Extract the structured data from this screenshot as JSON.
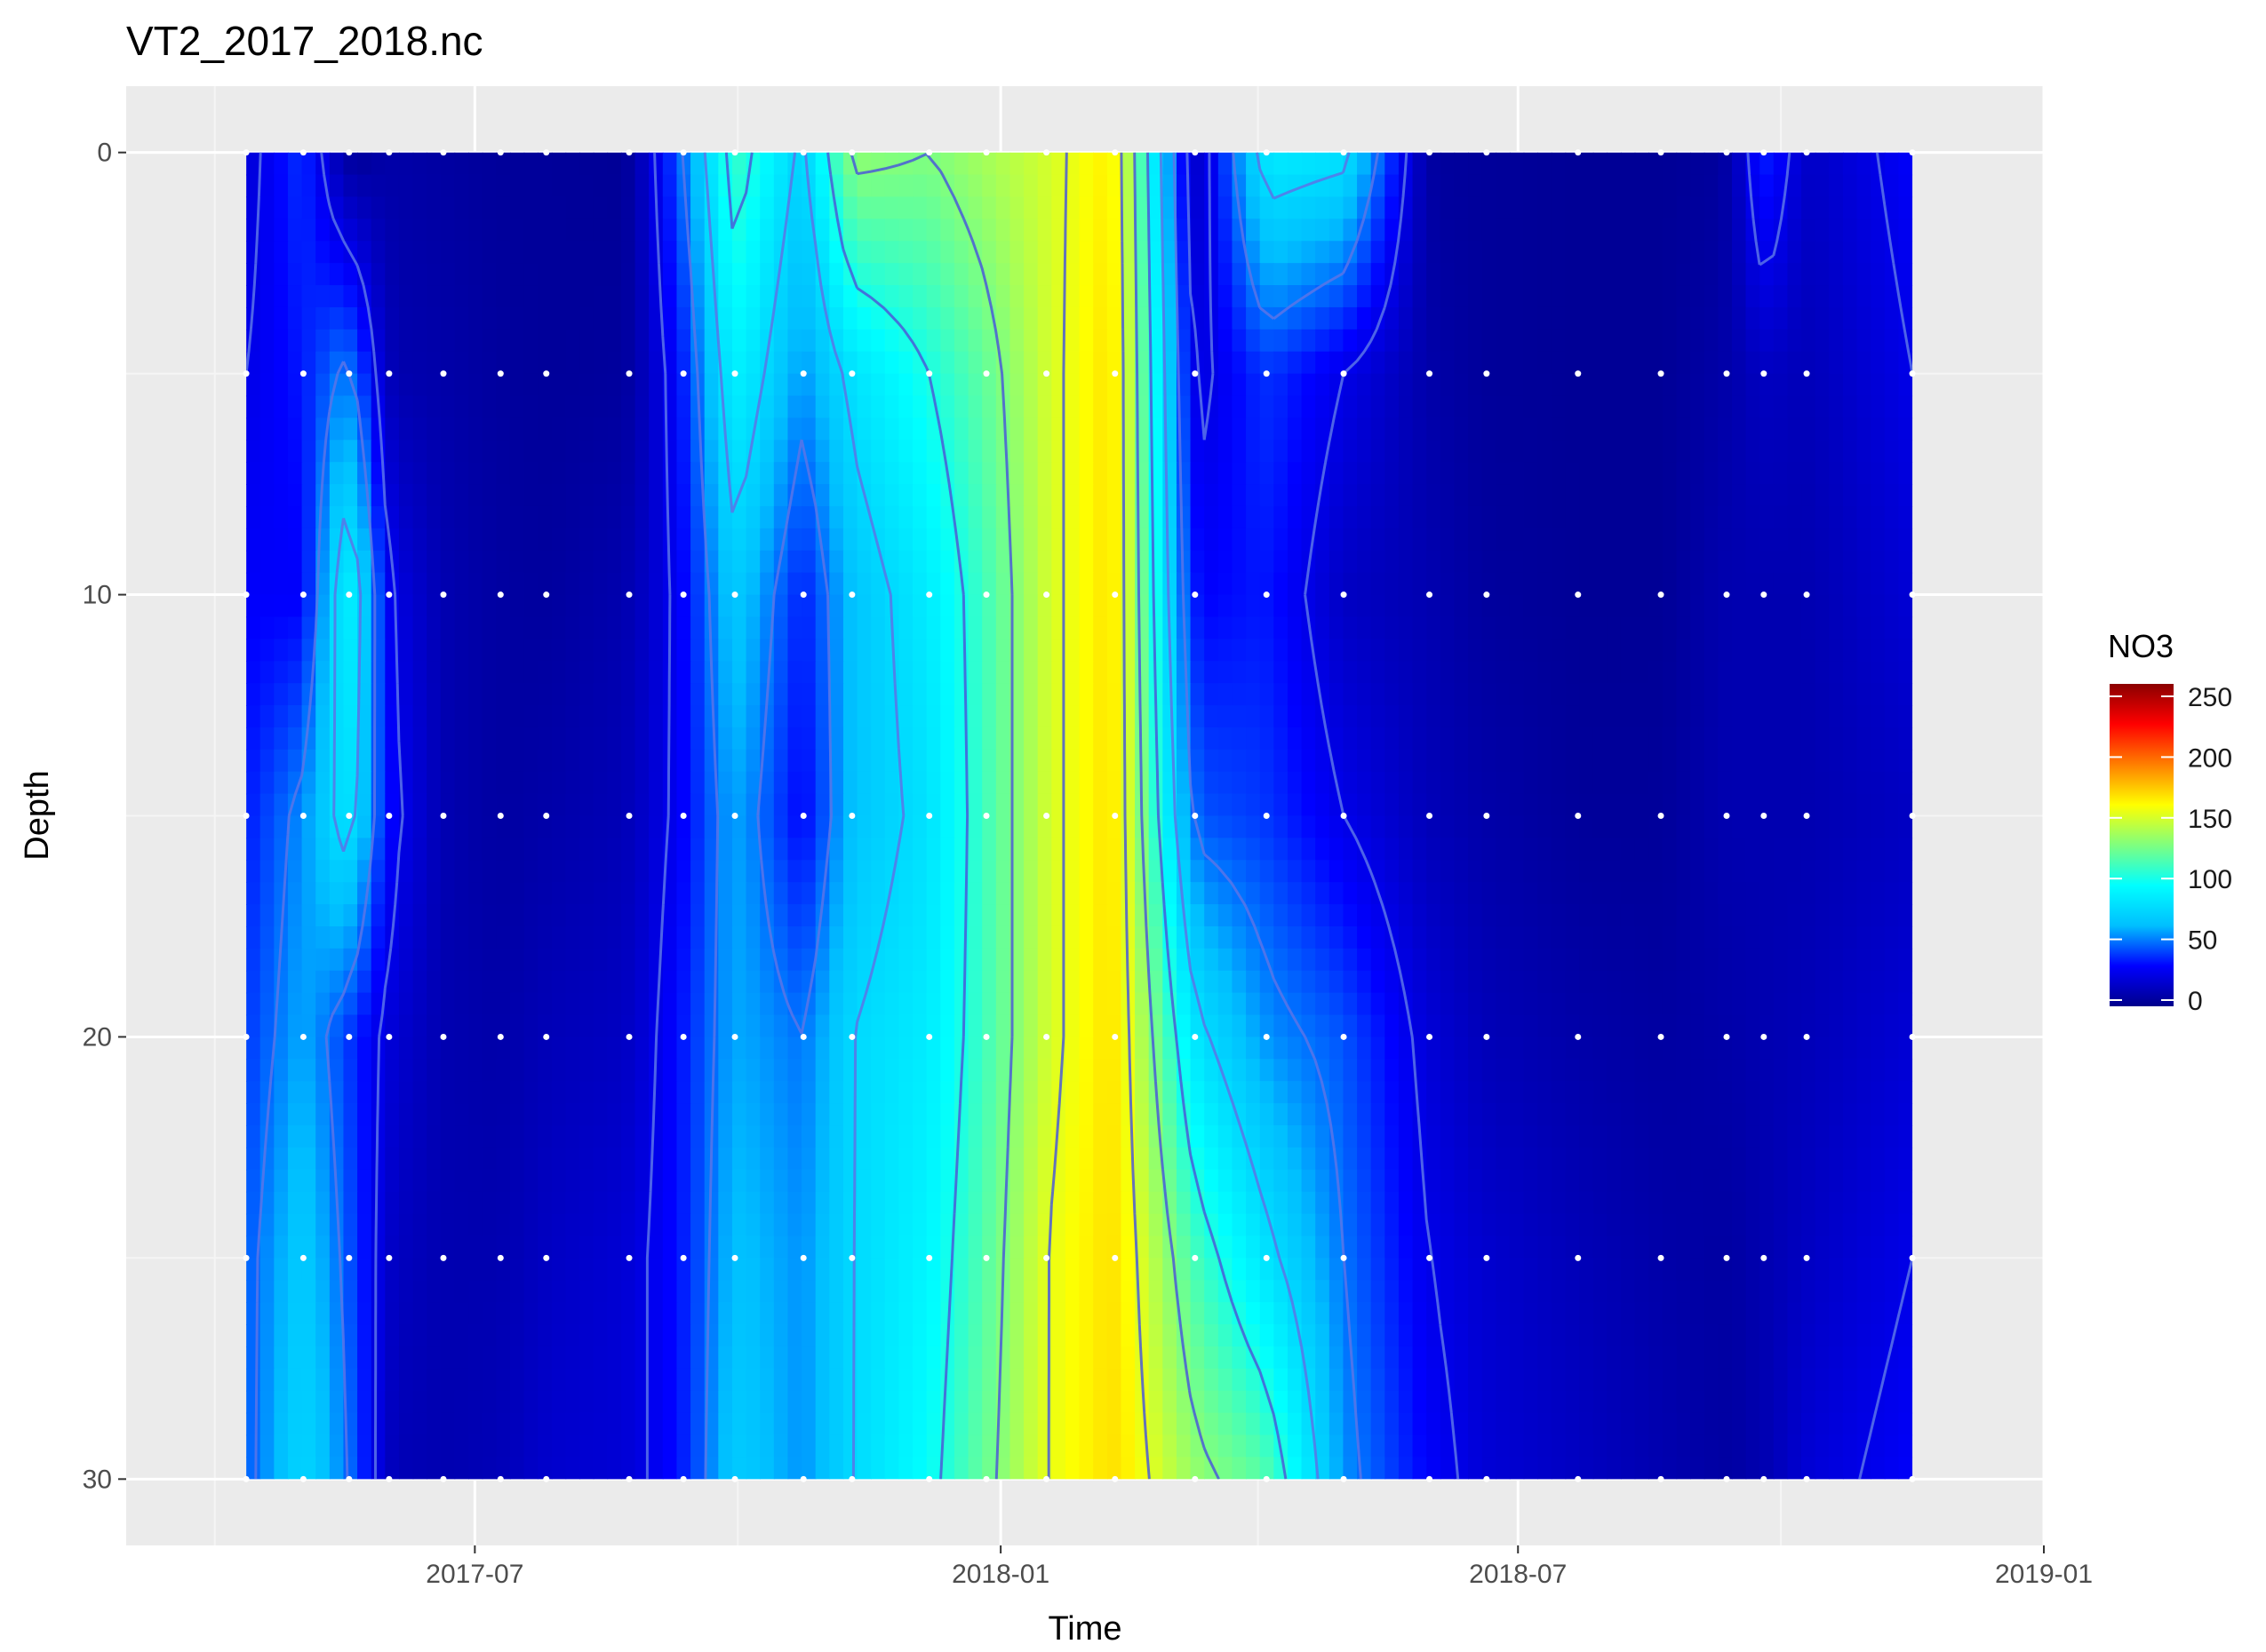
{
  "chart_data": {
    "type": "heatmap",
    "title": "VT2_2017_2018.nc",
    "xlabel": "Time",
    "ylabel": "Depth",
    "legend_title": "NO3",
    "x_ticks": [
      "2017-07",
      "2018-01",
      "2018-07",
      "2019-01"
    ],
    "y_ticks": [
      "0",
      "10",
      "20",
      "30"
    ],
    "colorbar_ticks": [
      "250",
      "200",
      "150",
      "100",
      "50",
      "0"
    ],
    "colorbar_range": [
      0,
      250
    ],
    "colorscale": [
      "#00008b",
      "#0000ff",
      "#00bfff",
      "#00ffff",
      "#7fff7f",
      "#ffff00",
      "#ff7f00",
      "#ff0000",
      "#8b0000"
    ],
    "xlim": [
      "2017-03-01",
      "2019-01-01"
    ],
    "ylim": [
      -1.5,
      31.5
    ],
    "y_reversed": true,
    "sample_times": [
      "2017-04-12",
      "2017-05-02",
      "2017-05-18",
      "2017-06-01",
      "2017-06-20",
      "2017-07-10",
      "2017-07-26",
      "2017-08-24",
      "2017-09-12",
      "2017-09-30",
      "2017-10-24",
      "2017-11-10",
      "2017-12-07",
      "2017-12-27",
      "2018-01-17",
      "2018-02-10",
      "2018-03-10",
      "2018-04-04",
      "2018-05-01",
      "2018-05-31",
      "2018-06-20",
      "2018-07-22",
      "2018-08-20",
      "2018-09-12",
      "2018-09-25",
      "2018-10-10",
      "2018-11-16"
    ],
    "depths": [
      0,
      5,
      10,
      15,
      20,
      25,
      30
    ],
    "z": [
      [
        20,
        40,
        2,
        8,
        6,
        4,
        4,
        3,
        50,
        110,
        70,
        130,
        125,
        135,
        145,
        162,
        10,
        85,
        80,
        5,
        4,
        3,
        3,
        5,
        40,
        15,
        30
      ],
      [
        25,
        35,
        55,
        10,
        8,
        5,
        4,
        5,
        35,
        90,
        55,
        80,
        100,
        118,
        145,
        165,
        20,
        40,
        25,
        8,
        4,
        3,
        3,
        8,
        15,
        12,
        25
      ],
      [
        30,
        30,
        95,
        25,
        10,
        6,
        5,
        10,
        30,
        70,
        35,
        65,
        85,
        110,
        145,
        165,
        30,
        35,
        15,
        10,
        5,
        3,
        3,
        10,
        10,
        10,
        20
      ],
      [
        35,
        55,
        85,
        30,
        10,
        6,
        8,
        12,
        30,
        60,
        30,
        65,
        80,
        110,
        145,
        165,
        45,
        40,
        25,
        12,
        8,
        4,
        4,
        10,
        10,
        10,
        15
      ],
      [
        40,
        60,
        40,
        20,
        10,
        8,
        12,
        15,
        35,
        60,
        50,
        75,
        85,
        110,
        145,
        165,
        80,
        55,
        45,
        20,
        12,
        8,
        6,
        8,
        10,
        12,
        20
      ],
      [
        45,
        70,
        45,
        15,
        10,
        10,
        15,
        20,
        35,
        65,
        55,
        75,
        90,
        115,
        150,
        165,
        110,
        80,
        50,
        25,
        18,
        12,
        8,
        6,
        10,
        15,
        25
      ],
      [
        45,
        75,
        50,
        12,
        10,
        12,
        18,
        20,
        35,
        70,
        55,
        75,
        95,
        120,
        150,
        165,
        130,
        115,
        55,
        30,
        20,
        15,
        10,
        6,
        10,
        20,
        30
      ]
    ]
  }
}
